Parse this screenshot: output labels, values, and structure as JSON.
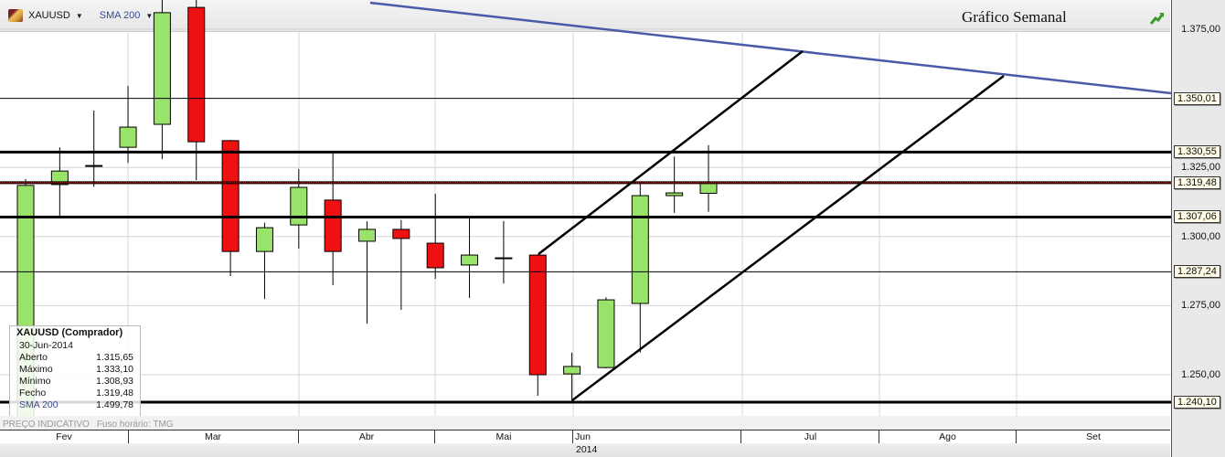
{
  "header": {
    "symbol": "XAUUSD",
    "indicator": "SMA 200",
    "title": "Gráfico Semanal",
    "symbol_icon": "gold-bar-icon",
    "status_icon": "chart-up-icon"
  },
  "info_box": {
    "title": "XAUUSD (Comprador)",
    "date": "30-Jun-2014",
    "rows": [
      {
        "label": "Aberto",
        "value": "1.315,65"
      },
      {
        "label": "Máximo",
        "value": "1.333,10"
      },
      {
        "label": "Mínimo",
        "value": "1.308,93"
      },
      {
        "label": "Fecho",
        "value": "1.319,48"
      },
      {
        "label": "SMA 200",
        "value": "1.499,78"
      }
    ]
  },
  "footer": {
    "price_note": "PREÇO INDICATIVO",
    "timezone": "Fuso horário: TMG"
  },
  "time_axis": {
    "months": [
      "Fev",
      "Mar",
      "Abr",
      "Mai",
      "Jun",
      "Jul",
      "Ago",
      "Set"
    ],
    "year": "2014"
  },
  "price_axis": {
    "ticks": [
      "1.375,00",
      "1.325,00",
      "1.300,00",
      "1.275,00",
      "1.250,00"
    ],
    "levels": [
      {
        "label": "1.350,01",
        "value": 1350.01,
        "style": "thin"
      },
      {
        "label": "1.330,55",
        "value": 1330.55,
        "style": "thick"
      },
      {
        "label": "1.319,48",
        "value": 1319.48,
        "style": "dotted"
      },
      {
        "label": "1.307,06",
        "value": 1307.06,
        "style": "thick"
      },
      {
        "label": "1.287,24",
        "value": 1287.24,
        "style": "thin"
      },
      {
        "label": "1.240,10",
        "value": 1240.1,
        "style": "thick"
      }
    ]
  },
  "colors": {
    "up": "#99e36a",
    "down": "#ee1111",
    "trendline": "#4a5aa8"
  },
  "chart_data": {
    "type": "candlestick",
    "interval": "weekly",
    "ylim": [
      1232,
      1385
    ],
    "ohlc": [
      [
        1230,
        1320.8,
        1228,
        1318.5
      ],
      [
        1318.8,
        1332.3,
        1307.5,
        1323.7
      ],
      [
        1325.7,
        1345.6,
        1318,
        1325.7
      ],
      [
        1332.3,
        1354.5,
        1326.7,
        1339.6
      ],
      [
        1340.6,
        1387,
        1328,
        1381
      ],
      [
        1382.9,
        1387,
        1320.4,
        1334.3
      ],
      [
        1334.7,
        1335,
        1285.7,
        1294.6
      ],
      [
        1294.6,
        1305,
        1277.4,
        1303.2
      ],
      [
        1304.2,
        1324.4,
        1295.6,
        1317.8
      ],
      [
        1313.2,
        1330.4,
        1282.4,
        1294.6
      ],
      [
        1298.3,
        1305.5,
        1268.5,
        1302.6
      ],
      [
        1302.6,
        1306,
        1273.5,
        1299.3
      ],
      [
        1297.6,
        1315.5,
        1284.7,
        1288.7
      ],
      [
        1289.7,
        1307,
        1277.8,
        1293.3
      ],
      [
        1292.3,
        1305.6,
        1283,
        1292.3
      ],
      [
        1293.3,
        1293.6,
        1242.4,
        1250
      ],
      [
        1250.3,
        1258,
        1240.1,
        1253
      ],
      [
        1252.6,
        1278,
        1252.3,
        1277.1
      ],
      [
        1275.8,
        1319.3,
        1258,
        1314.8
      ],
      [
        1314.8,
        1328.9,
        1308.6,
        1315.8
      ],
      [
        1315.65,
        1333.1,
        1308.93,
        1319.48
      ]
    ]
  }
}
